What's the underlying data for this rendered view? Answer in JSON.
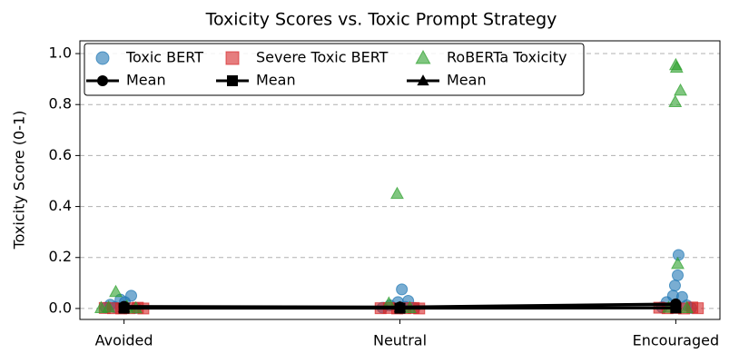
{
  "chart_data": {
    "type": "scatter",
    "title": "Toxicity Scores vs. Toxic Prompt Strategy",
    "y_label": "Toxicity Score (0-1)",
    "xlim": [
      -0.16,
      2.16
    ],
    "ylim": [
      -0.043,
      1.05
    ],
    "xticks": [
      {
        "value": 0,
        "label": "Avoided"
      },
      {
        "value": 1,
        "label": "Neutral"
      },
      {
        "value": 2,
        "label": "Encouraged"
      }
    ],
    "yticks": [
      {
        "value": 0,
        "label": "0.0"
      },
      {
        "value": 0.2,
        "label": "0.2"
      },
      {
        "value": 0.4,
        "label": "0.4"
      },
      {
        "value": 0.6,
        "label": "0.6"
      },
      {
        "value": 0.8,
        "label": "0.8"
      },
      {
        "value": 1,
        "label": "1.0"
      }
    ],
    "grid": true,
    "legend": "upper left",
    "series": [
      {
        "name": "Toxic BERT",
        "style": "points",
        "marker": "circle",
        "color": "#1f77b4",
        "x": [
          -0.05,
          -0.013,
          0.026,
          0.003,
          -0.033,
          0.043,
          -0.066,
          1.007,
          0.993,
          1.03,
          0.964,
          0.937,
          1.053,
          1.02,
          2.01,
          2.007,
          1.997,
          1.99,
          2.023,
          1.967,
          2.04,
          1.95,
          2.056
        ],
        "values": [
          0.015,
          0.035,
          0.05,
          0.025,
          0.005,
          0.002,
          0.003,
          0.075,
          0.025,
          0.03,
          0.012,
          0.003,
          0.002,
          0.006,
          0.21,
          0.13,
          0.09,
          0.05,
          0.045,
          0.025,
          0.012,
          0.005,
          0.002
        ]
      },
      {
        "name": "Mean",
        "style": "line",
        "marker": "circle",
        "color": "#000000",
        "x": [
          0,
          1,
          2
        ],
        "values": [
          0.008,
          0.006,
          0.018
        ]
      },
      {
        "name": "Severe Toxic BERT",
        "style": "points",
        "marker": "square",
        "color": "#d62728",
        "x": [
          -0.07,
          -0.04,
          -0.01,
          0.02,
          0.05,
          0.07,
          0.93,
          0.96,
          0.99,
          1.02,
          1.05,
          1.07,
          1.94,
          1.97,
          2.0,
          2.03,
          2.06,
          2.08
        ],
        "values": [
          0.002,
          0.001,
          0,
          0.001,
          0.003,
          0,
          0.001,
          0.002,
          0,
          0.001,
          0.002,
          0,
          0.003,
          0.001,
          0.002,
          0,
          0.004,
          0.001
        ]
      },
      {
        "name": "Mean",
        "style": "line",
        "marker": "square",
        "color": "#000000",
        "x": [
          0,
          1,
          2
        ],
        "values": [
          0.001,
          0.001,
          0.002
        ]
      },
      {
        "name": "RoBERTa Toxicity",
        "style": "points",
        "marker": "triangle",
        "color": "#2ca02c",
        "x": [
          -0.03,
          -0.056,
          0.043,
          0.01,
          -0.083,
          0.99,
          0.96,
          1.036,
          2.0,
          2.003,
          2.017,
          1.998,
          2.007,
          1.974,
          2.04
        ],
        "values": [
          0.065,
          0.004,
          0.001,
          0.008,
          0.002,
          0.45,
          0.02,
          0.002,
          0.955,
          0.945,
          0.855,
          0.81,
          0.175,
          0.003,
          0.002
        ]
      },
      {
        "name": "Mean",
        "style": "line",
        "marker": "triangle",
        "color": "#000000",
        "x": [
          0,
          1,
          2
        ],
        "values": [
          0.003,
          0.005,
          0.015
        ]
      }
    ]
  }
}
